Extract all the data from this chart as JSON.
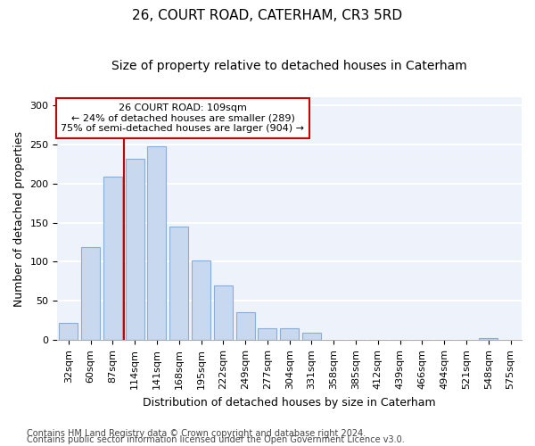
{
  "title1": "26, COURT ROAD, CATERHAM, CR3 5RD",
  "title2": "Size of property relative to detached houses in Caterham",
  "xlabel": "Distribution of detached houses by size in Caterham",
  "ylabel": "Number of detached properties",
  "categories": [
    "32sqm",
    "60sqm",
    "87sqm",
    "114sqm",
    "141sqm",
    "168sqm",
    "195sqm",
    "222sqm",
    "249sqm",
    "277sqm",
    "304sqm",
    "331sqm",
    "358sqm",
    "385sqm",
    "412sqm",
    "439sqm",
    "466sqm",
    "494sqm",
    "521sqm",
    "548sqm",
    "575sqm"
  ],
  "values": [
    22,
    119,
    209,
    232,
    248,
    145,
    102,
    70,
    36,
    15,
    15,
    9,
    0,
    0,
    0,
    0,
    0,
    0,
    0,
    3,
    0
  ],
  "bar_color": "#c8d8ef",
  "bar_edge_color": "#8badd4",
  "red_line_x": 2.5,
  "annotation_text": "26 COURT ROAD: 109sqm\n← 24% of detached houses are smaller (289)\n75% of semi-detached houses are larger (904) →",
  "footnote1": "Contains HM Land Registry data © Crown copyright and database right 2024.",
  "footnote2": "Contains public sector information licensed under the Open Government Licence v3.0.",
  "ylim": [
    0,
    310
  ],
  "yticks": [
    0,
    50,
    100,
    150,
    200,
    250,
    300
  ],
  "fig_bg_color": "#ffffff",
  "plot_bg_color": "#eef2fa",
  "grid_color": "#ffffff",
  "title1_fontsize": 11,
  "title2_fontsize": 10,
  "xlabel_fontsize": 9,
  "ylabel_fontsize": 9,
  "tick_fontsize": 8,
  "footnote_fontsize": 7
}
